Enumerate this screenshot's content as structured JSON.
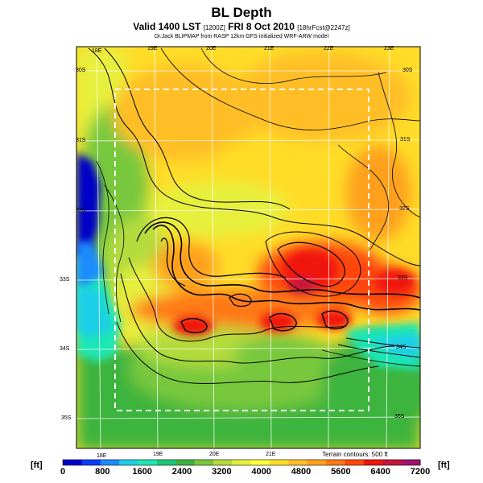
{
  "title": "BL Depth",
  "subtitle": {
    "main": "Valid 1400 LST",
    "code": "[1200Z]",
    "date": "FRI 8 Oct 2010",
    "forecast": "[18hrFcst@2247z]"
  },
  "credit": "Dr.Jack BLIPMAP from RASP 12km GFS-initialized WRF-ARW model",
  "longitude_labels": [
    "18E",
    "19E",
    "20E",
    "21E",
    "22E",
    "23E"
  ],
  "latitude_labels": [
    "30S",
    "31S",
    "32S",
    "33S",
    "34S",
    "35S"
  ],
  "terrain_note": "Terrain contours: 500 ft",
  "colorbar": {
    "unit": "[ft]",
    "ticks": [
      "0",
      "800",
      "1600",
      "2400",
      "3200",
      "4000",
      "4800",
      "5600",
      "6400",
      "7200"
    ],
    "colors": [
      "#0000c8",
      "#0a3cff",
      "#1e8cff",
      "#1ecfe8",
      "#1ee6b4",
      "#1ec878",
      "#3cb43c",
      "#78c83c",
      "#b4dc3c",
      "#e6f03c",
      "#ffff3c",
      "#ffdc28",
      "#ffbe28",
      "#ffa01e",
      "#ff7814",
      "#ff460a",
      "#f0140a",
      "#c8143c",
      "#a0146e"
    ]
  }
}
